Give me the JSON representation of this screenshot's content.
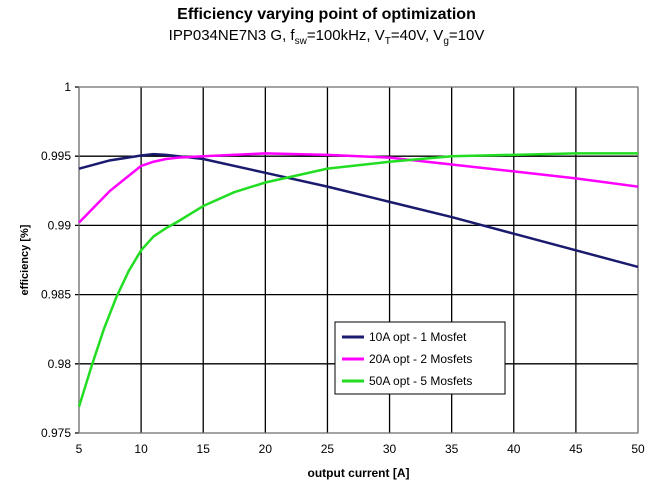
{
  "chart_data": {
    "type": "line",
    "title": "Efficiency varying point of optimization",
    "subtitle_parts": [
      "IPP034NE7N3 G, f",
      "sw",
      "=100kHz, V",
      "T",
      "=40V, V",
      "g",
      "=10V"
    ],
    "xlabel": "output current [A]",
    "ylabel": "efficiency [%]",
    "xlim": [
      5,
      50
    ],
    "ylim": [
      0.975,
      1
    ],
    "xticks": [
      5,
      10,
      15,
      20,
      25,
      30,
      35,
      40,
      45,
      50
    ],
    "yticks": [
      0.975,
      0.98,
      0.985,
      0.99,
      0.995,
      1
    ],
    "ytick_labels": [
      "0.975",
      "0.98",
      "0.985",
      "0.99",
      "0.995",
      "1"
    ],
    "grid": true,
    "legend_position": "bottom-center",
    "series": [
      {
        "name": "10A opt - 1 Mosfet",
        "color": "#1a1a6e",
        "x": [
          5,
          7.5,
          10,
          11,
          12,
          15,
          20,
          25,
          30,
          35,
          40,
          45,
          50
        ],
        "y": [
          0.9941,
          0.9947,
          0.99505,
          0.99515,
          0.9951,
          0.9948,
          0.9938,
          0.9928,
          0.9917,
          0.9906,
          0.9894,
          0.9882,
          0.987
        ]
      },
      {
        "name": "20A opt - 2 Mosfets",
        "color": "#ff00ff",
        "x": [
          5,
          7.5,
          10,
          11,
          12,
          13,
          15,
          20,
          25,
          30,
          35,
          40,
          45,
          50
        ],
        "y": [
          0.9902,
          0.9925,
          0.9943,
          0.9946,
          0.9948,
          0.9949,
          0.995,
          0.9952,
          0.9951,
          0.9949,
          0.9944,
          0.9939,
          0.9934,
          0.9928
        ]
      },
      {
        "name": "50A opt - 5 Mosfets",
        "color": "#22dd22",
        "x": [
          5,
          6,
          7,
          8,
          9,
          10,
          11,
          12,
          13,
          15,
          17.5,
          20,
          25,
          30,
          35,
          40,
          45,
          50
        ],
        "y": [
          0.9769,
          0.9798,
          0.9825,
          0.9848,
          0.9867,
          0.9882,
          0.9892,
          0.9898,
          0.9903,
          0.9914,
          0.9924,
          0.9931,
          0.9941,
          0.9946,
          0.995,
          0.9951,
          0.9952,
          0.9952
        ]
      }
    ]
  }
}
